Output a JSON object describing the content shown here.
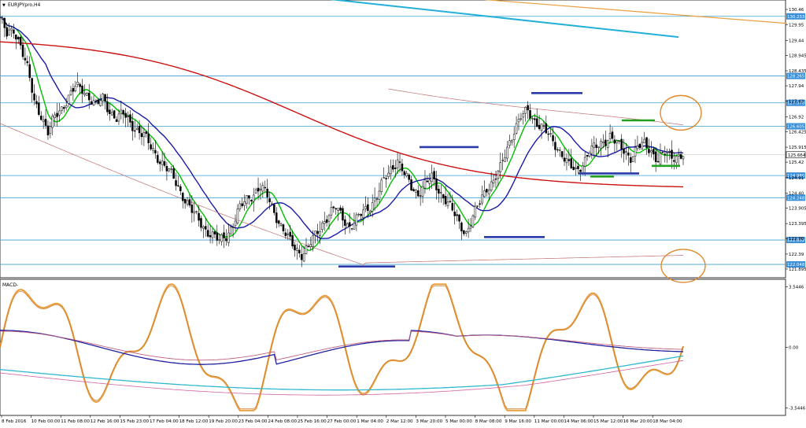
{
  "window": {
    "symbol_title": "EURJPYpro,H4",
    "menu_glyph": "▼"
  },
  "price_panel": {
    "y_ticks": [
      130.46,
      129.95,
      129.44,
      128.945,
      128.435,
      127.94,
      127.43,
      126.92,
      126.425,
      125.915,
      125.42,
      124.91,
      124.4,
      123.905,
      123.395,
      122.9,
      122.39,
      121.895
    ],
    "horizontal_levels": [
      {
        "value": 130.233,
        "label": "130.233"
      },
      {
        "value": 128.265,
        "label": "128.265"
      },
      {
        "value": 127.378,
        "label": "127.378"
      },
      {
        "value": 126.605,
        "label": "126.605"
      },
      {
        "value": 124.98,
        "label": "124.980"
      },
      {
        "value": 124.248,
        "label": "124.248"
      },
      {
        "value": 122.852,
        "label": "122.852"
      },
      {
        "value": 122.048,
        "label": "122.048"
      }
    ],
    "current_price": {
      "value": 125.664,
      "label": "125.664"
    }
  },
  "macd_panel": {
    "title": "MACD-",
    "y_ticks": [
      {
        "value": 3.5446,
        "label": "3.5446"
      },
      {
        "value": 0.0,
        "label": "0.00"
      },
      {
        "value": -3.5446,
        "label": "-3.5446"
      }
    ]
  },
  "x_axis": {
    "ticks": [
      "8 Feb 2016",
      "10 Feb 00:00",
      "11 Feb 08:00",
      "12 Feb 16:00",
      "15 Feb 23:00",
      "17 Feb 04:00",
      "18 Feb 12:00",
      "19 Feb 20:00",
      "23 Feb 04:00",
      "24 Feb 08:00",
      "25 Feb 16:00",
      "27 Feb 00:00",
      "1 Mar 04:00",
      "2 Mar 12:00",
      "3 Mar 20:00",
      "5 Mar 00:00",
      "8 Mar 08:00",
      "9 Mar 16:00",
      "11 Mar 00:00",
      "14 Mar 06:00",
      "15 Mar 12:00",
      "16 Mar 20:00",
      "18 Mar 04:00"
    ]
  },
  "colors": {
    "candle": "#000000",
    "ma_fast": "#00c000",
    "ma_mid": "#1a1aa8",
    "ma_slow": "#cc1111",
    "ma_faint": "#c07070",
    "trend_cyan": "#22b0d8",
    "trend_orange": "#e8a040",
    "level_line": "#3a9fd0",
    "level_badge": "#3a8fd8",
    "zone_blue": "#2a3aa8",
    "zone_green": "#22a020",
    "circle": "#e08a30",
    "macd_stoch": "#e8a040",
    "macd_main": "#2020a0",
    "macd_signal": "#c06080",
    "macd_cyan": "#30b8d0",
    "macd_pink": "#d060a0"
  },
  "chart_data": [
    {
      "type": "candlestick",
      "title": "EURJPYpro,H4",
      "ylim": [
        121.66,
        130.72
      ],
      "x_categories": [
        "8 Feb 2016",
        "10 Feb 00:00",
        "11 Feb 08:00",
        "12 Feb 16:00",
        "15 Feb 23:00",
        "17 Feb 04:00",
        "18 Feb 12:00",
        "19 Feb 20:00",
        "23 Feb 04:00",
        "24 Feb 08:00",
        "25 Feb 16:00",
        "27 Feb 00:00",
        "1 Mar 04:00",
        "2 Mar 12:00",
        "3 Mar 20:00",
        "5 Mar 00:00",
        "8 Mar 08:00",
        "9 Mar 16:00",
        "11 Mar 00:00",
        "14 Mar 06:00",
        "15 Mar 12:00",
        "16 Mar 20:00",
        "18 Mar 04:00"
      ],
      "close_path": [
        [
          0,
          130.2
        ],
        [
          3,
          129.6
        ],
        [
          6,
          129.8
        ],
        [
          9,
          129.3
        ],
        [
          12,
          128.5
        ],
        [
          15,
          127.4
        ],
        [
          18,
          127.0
        ],
        [
          21,
          126.4
        ],
        [
          24,
          126.9
        ],
        [
          27,
          127.2
        ],
        [
          30,
          127.6
        ],
        [
          33,
          127.9
        ],
        [
          36,
          127.8
        ],
        [
          39,
          127.6
        ],
        [
          42,
          127.3
        ],
        [
          45,
          127.5
        ],
        [
          48,
          127.1
        ],
        [
          51,
          126.9
        ],
        [
          54,
          127.0
        ],
        [
          57,
          126.7
        ],
        [
          60,
          126.5
        ],
        [
          63,
          126.3
        ],
        [
          66,
          125.9
        ],
        [
          69,
          125.6
        ],
        [
          72,
          125.3
        ],
        [
          75,
          125.0
        ],
        [
          78,
          124.6
        ],
        [
          81,
          124.2
        ],
        [
          84,
          123.8
        ],
        [
          87,
          123.5
        ],
        [
          90,
          123.2
        ],
        [
          93,
          123.0
        ],
        [
          96,
          122.8
        ],
        [
          99,
          123.0
        ],
        [
          102,
          123.4
        ],
        [
          105,
          123.9
        ],
        [
          108,
          124.2
        ],
        [
          111,
          124.4
        ],
        [
          114,
          124.6
        ],
        [
          117,
          124.3
        ],
        [
          120,
          123.8
        ],
        [
          123,
          123.3
        ],
        [
          126,
          122.9
        ],
        [
          129,
          122.6
        ],
        [
          132,
          122.4
        ],
        [
          135,
          122.6
        ],
        [
          138,
          123.0
        ],
        [
          141,
          123.4
        ],
        [
          144,
          123.7
        ],
        [
          147,
          123.9
        ],
        [
          150,
          123.6
        ],
        [
          153,
          123.3
        ],
        [
          156,
          123.5
        ],
        [
          159,
          123.8
        ],
        [
          162,
          124.0
        ],
        [
          165,
          124.3
        ],
        [
          168,
          124.8
        ],
        [
          171,
          125.2
        ],
        [
          174,
          125.5
        ],
        [
          177,
          125.0
        ],
        [
          180,
          124.6
        ],
        [
          183,
          124.4
        ],
        [
          186,
          124.7
        ],
        [
          189,
          124.9
        ],
        [
          192,
          124.5
        ],
        [
          195,
          124.2
        ],
        [
          198,
          123.8
        ],
        [
          201,
          123.4
        ],
        [
          204,
          123.1
        ],
        [
          207,
          123.6
        ],
        [
          210,
          124.1
        ],
        [
          213,
          124.6
        ],
        [
          216,
          124.8
        ],
        [
          219,
          125.2
        ],
        [
          222,
          125.9
        ],
        [
          225,
          126.5
        ],
        [
          228,
          126.9
        ],
        [
          231,
          127.1
        ],
        [
          234,
          126.8
        ],
        [
          237,
          126.6
        ],
        [
          240,
          126.3
        ],
        [
          243,
          126.0
        ],
        [
          246,
          125.7
        ],
        [
          249,
          125.3
        ],
        [
          252,
          125.1
        ],
        [
          255,
          125.4
        ],
        [
          258,
          125.8
        ],
        [
          261,
          125.9
        ],
        [
          264,
          126.1
        ],
        [
          267,
          126.3
        ],
        [
          270,
          126.0
        ],
        [
          273,
          125.8
        ],
        [
          276,
          125.6
        ],
        [
          279,
          125.9
        ],
        [
          282,
          126.0
        ],
        [
          285,
          125.8
        ],
        [
          288,
          125.5
        ],
        [
          291,
          125.7
        ],
        [
          294,
          125.6
        ],
        [
          297,
          125.664
        ]
      ]
    },
    {
      "type": "line",
      "title": "MACD-",
      "ylim": [
        -3.9,
        3.9
      ],
      "x_categories": [
        "8 Feb 2016",
        "10 Feb 00:00",
        "11 Feb 08:00",
        "12 Feb 16:00",
        "15 Feb 23:00",
        "17 Feb 04:00",
        "18 Feb 12:00",
        "19 Feb 20:00",
        "23 Feb 04:00",
        "24 Feb 08:00",
        "25 Feb 16:00",
        "27 Feb 00:00",
        "1 Mar 04:00",
        "2 Mar 12:00",
        "3 Mar 20:00",
        "5 Mar 00:00",
        "8 Mar 08:00",
        "9 Mar 16:00",
        "11 Mar 00:00",
        "14 Mar 06:00",
        "15 Mar 12:00",
        "16 Mar 20:00",
        "18 Mar 04:00"
      ],
      "y_ticks": [
        3.5446,
        0.0,
        -3.5446
      ]
    }
  ]
}
